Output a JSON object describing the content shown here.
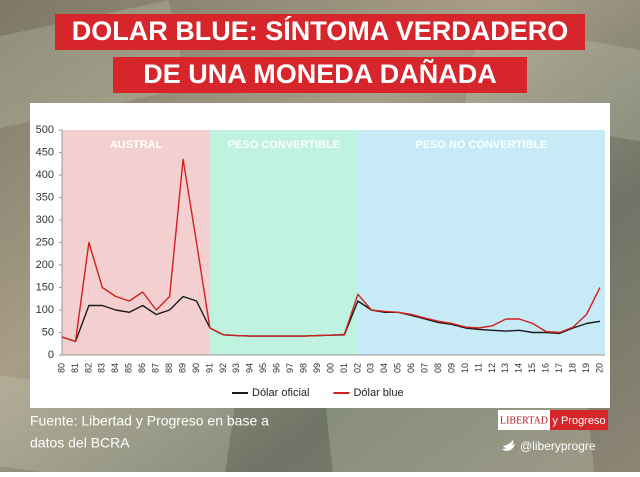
{
  "chart_data": {
    "type": "line",
    "title": [
      "DOLAR BLUE: SÍNTOMA VERDADERO",
      "DE UNA MONEDA DAÑADA"
    ],
    "categories": [
      "80",
      "81",
      "82",
      "83",
      "84",
      "85",
      "86",
      "87",
      "88",
      "89",
      "90",
      "91",
      "92",
      "93",
      "94",
      "95",
      "96",
      "97",
      "98",
      "99",
      "00",
      "01",
      "02",
      "03",
      "04",
      "05",
      "06",
      "07",
      "08",
      "09",
      "10",
      "11",
      "12",
      "13",
      "14",
      "15",
      "16",
      "17",
      "18",
      "19",
      "20"
    ],
    "series": [
      {
        "name": "Dólar oficial",
        "color": "#1a1a1a",
        "values": [
          40,
          30,
          110,
          110,
          100,
          95,
          110,
          90,
          100,
          130,
          120,
          60,
          45,
          43,
          42,
          42,
          42,
          42,
          42,
          43,
          44,
          45,
          120,
          100,
          95,
          95,
          88,
          80,
          72,
          68,
          60,
          57,
          55,
          53,
          55,
          50,
          50,
          48,
          60,
          70,
          75
        ]
      },
      {
        "name": "Dólar blue",
        "color": "#d0211c",
        "values": [
          40,
          30,
          250,
          150,
          130,
          120,
          140,
          100,
          130,
          435,
          250,
          60,
          45,
          43,
          42,
          42,
          42,
          42,
          42,
          43,
          44,
          46,
          135,
          100,
          97,
          95,
          90,
          82,
          75,
          70,
          62,
          60,
          65,
          80,
          80,
          70,
          52,
          50,
          62,
          90,
          150
        ]
      }
    ],
    "bands": [
      {
        "label": "AUSTRAL",
        "from": "80",
        "to": "91",
        "color": "#f4cfd0"
      },
      {
        "label": "PESO CONVERTIBLE",
        "from": "91",
        "to": "02",
        "color": "#bff2df"
      },
      {
        "label": "PESO NO CONVERTIBLE",
        "from": "02",
        "to": "20",
        "color": "#c6eaf6"
      }
    ],
    "ylim": [
      0,
      500
    ],
    "yticks": [
      0,
      50,
      100,
      150,
      200,
      250,
      300,
      350,
      400,
      450,
      500
    ],
    "grid": false
  },
  "footer": {
    "source": [
      "Fuente: Libertad y Progreso en base a",
      "datos del BCRA"
    ],
    "logo": [
      "LIBERTAD",
      "y Progreso"
    ],
    "handle": "@liberyprogre"
  }
}
